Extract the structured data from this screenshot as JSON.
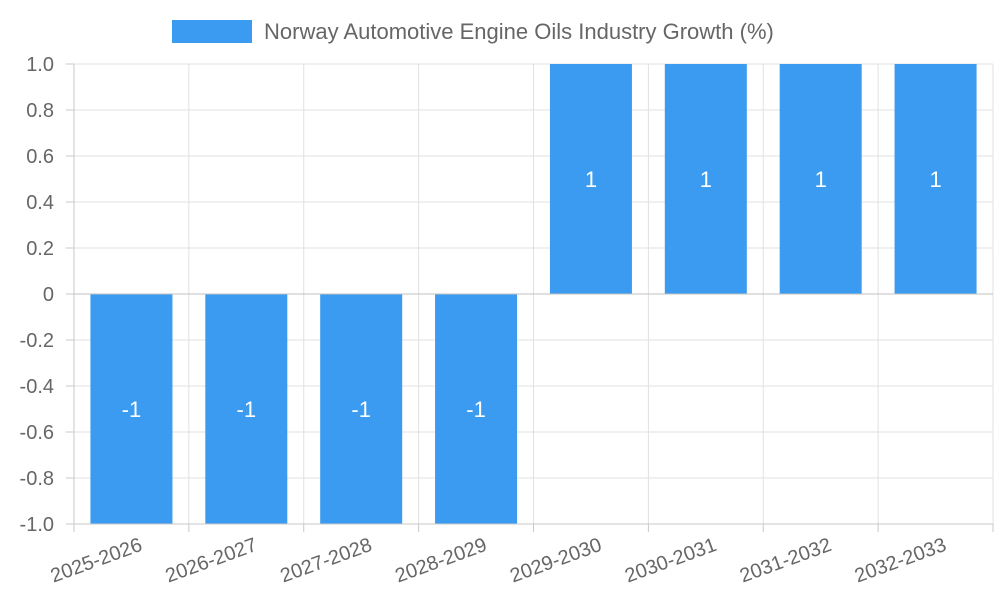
{
  "chart_data": {
    "type": "bar",
    "categories": [
      "2025-2026",
      "2026-2027",
      "2027-2028",
      "2028-2029",
      "2029-2030",
      "2030-2031",
      "2031-2032",
      "2032-2033"
    ],
    "series": [
      {
        "name": "Norway Automotive Engine Oils Industry Growth (%)",
        "values": [
          -1,
          -1,
          -1,
          -1,
          1,
          1,
          1,
          1
        ],
        "color": "#3a9bf0"
      }
    ],
    "data_labels": [
      "-1",
      "-1",
      "-1",
      "-1",
      "1",
      "1",
      "1",
      "1"
    ],
    "yticks": [
      "1.0",
      "0.8",
      "0.6",
      "0.4",
      "0.2",
      "0",
      "-0.2",
      "-0.4",
      "-0.6",
      "-0.8",
      "-1.0"
    ],
    "ytick_values": [
      1.0,
      0.8,
      0.6,
      0.4,
      0.2,
      0,
      -0.2,
      -0.4,
      -0.6,
      -0.8,
      -1.0
    ],
    "ylim": [
      -1.0,
      1.0
    ],
    "title": "",
    "xlabel": "",
    "ylabel": "",
    "grid": true,
    "legend": "top-center"
  }
}
